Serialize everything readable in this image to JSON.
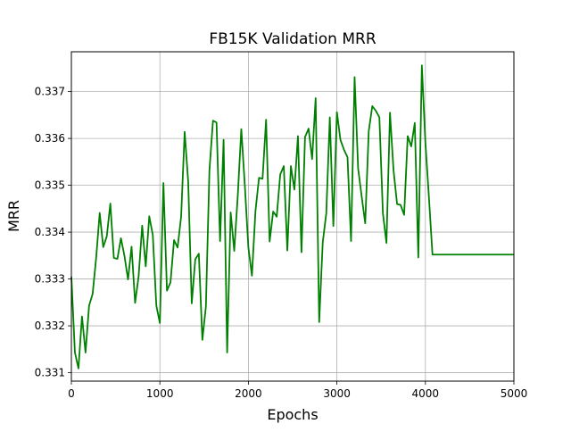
{
  "chart_data": {
    "type": "line",
    "title": "FB15K Validation MRR",
    "xlabel": "Epochs",
    "ylabel": "MRR",
    "xlim": [
      0,
      5000
    ],
    "ylim": [
      0.33082,
      0.33785
    ],
    "grid": true,
    "line_color": "#008000",
    "xticks": [
      0,
      1000,
      2000,
      3000,
      4000,
      5000
    ],
    "xtick_labels": [
      "0",
      "1000",
      "2000",
      "3000",
      "4000",
      "5000"
    ],
    "yticks": [
      0.331,
      0.332,
      0.333,
      0.334,
      0.335,
      0.336,
      0.337
    ],
    "ytick_labels": [
      "0.331",
      "0.332",
      "0.333",
      "0.334",
      "0.335",
      "0.336",
      "0.337"
    ],
    "series": [
      {
        "x": [
          0,
          40,
          80,
          120,
          160,
          200,
          240,
          280,
          320,
          360,
          400,
          440,
          480,
          520,
          560,
          600,
          640,
          680,
          720,
          760,
          800,
          840,
          880,
          920,
          960,
          1000,
          1040,
          1080,
          1120,
          1160,
          1200,
          1240,
          1280,
          1320,
          1360,
          1400,
          1440,
          1480,
          1520,
          1560,
          1600,
          1640,
          1680,
          1720,
          1760,
          1800,
          1840,
          1880,
          1920,
          1960,
          2000,
          2040,
          2080,
          2120,
          2160,
          2200,
          2240,
          2280,
          2320,
          2360,
          2400,
          2440,
          2480,
          2520,
          2560,
          2600,
          2640,
          2680,
          2720,
          2760,
          2800,
          2840,
          2880,
          2920,
          2960,
          3000,
          3040,
          3080,
          3120,
          3160,
          3200,
          3240,
          3280,
          3320,
          3360,
          3400,
          3440,
          3480,
          3520,
          3560,
          3600,
          3640,
          3680,
          3720,
          3760,
          3800,
          3840,
          3880,
          3920,
          3960,
          4000,
          4040,
          4080,
          4120,
          4160,
          4200,
          4240,
          4280,
          4320,
          4360,
          4400,
          4440,
          4480,
          4520,
          4560,
          4600,
          4640,
          4680,
          4720,
          4760,
          4800,
          4840,
          4880,
          4920,
          4960,
          5000
        ],
        "y": [
          0.33305,
          0.33143,
          0.33109,
          0.3322,
          0.33143,
          0.33243,
          0.33268,
          0.33345,
          0.33441,
          0.33368,
          0.33391,
          0.33461,
          0.33345,
          0.33343,
          0.33387,
          0.33349,
          0.33299,
          0.33369,
          0.33249,
          0.33306,
          0.33414,
          0.33327,
          0.33434,
          0.33394,
          0.33243,
          0.33206,
          0.33505,
          0.33275,
          0.33293,
          0.33383,
          0.33367,
          0.33433,
          0.33614,
          0.33508,
          0.33248,
          0.33342,
          0.33354,
          0.3317,
          0.33241,
          0.33532,
          0.33638,
          0.33634,
          0.33381,
          0.33597,
          0.33143,
          0.33442,
          0.3336,
          0.33478,
          0.3362,
          0.33499,
          0.33367,
          0.33307,
          0.33445,
          0.33516,
          0.33514,
          0.3364,
          0.3338,
          0.33444,
          0.33433,
          0.33523,
          0.33541,
          0.33361,
          0.33541,
          0.33491,
          0.33605,
          0.33357,
          0.33603,
          0.33621,
          0.33556,
          0.33686,
          0.33208,
          0.33378,
          0.3344,
          0.33645,
          0.33413,
          0.33656,
          0.33597,
          0.33576,
          0.3356,
          0.33381,
          0.33731,
          0.33536,
          0.33476,
          0.33419,
          0.33616,
          0.33669,
          0.33659,
          0.33645,
          0.3344,
          0.33377,
          0.33655,
          0.33532,
          0.3346,
          0.33458,
          0.33437,
          0.33605,
          0.33583,
          0.33633,
          0.33346,
          0.33756,
          0.33591,
          0.33474,
          0.33352,
          0.33352,
          0.33352,
          0.33352,
          0.33352,
          0.33352,
          0.33352,
          0.33352,
          0.33352,
          0.33352,
          0.33352,
          0.33352,
          0.33352,
          0.33352,
          0.33352,
          0.33352,
          0.33352,
          0.33352,
          0.33352,
          0.33352,
          0.33352,
          0.33352,
          0.33352,
          0.33352
        ]
      }
    ]
  }
}
